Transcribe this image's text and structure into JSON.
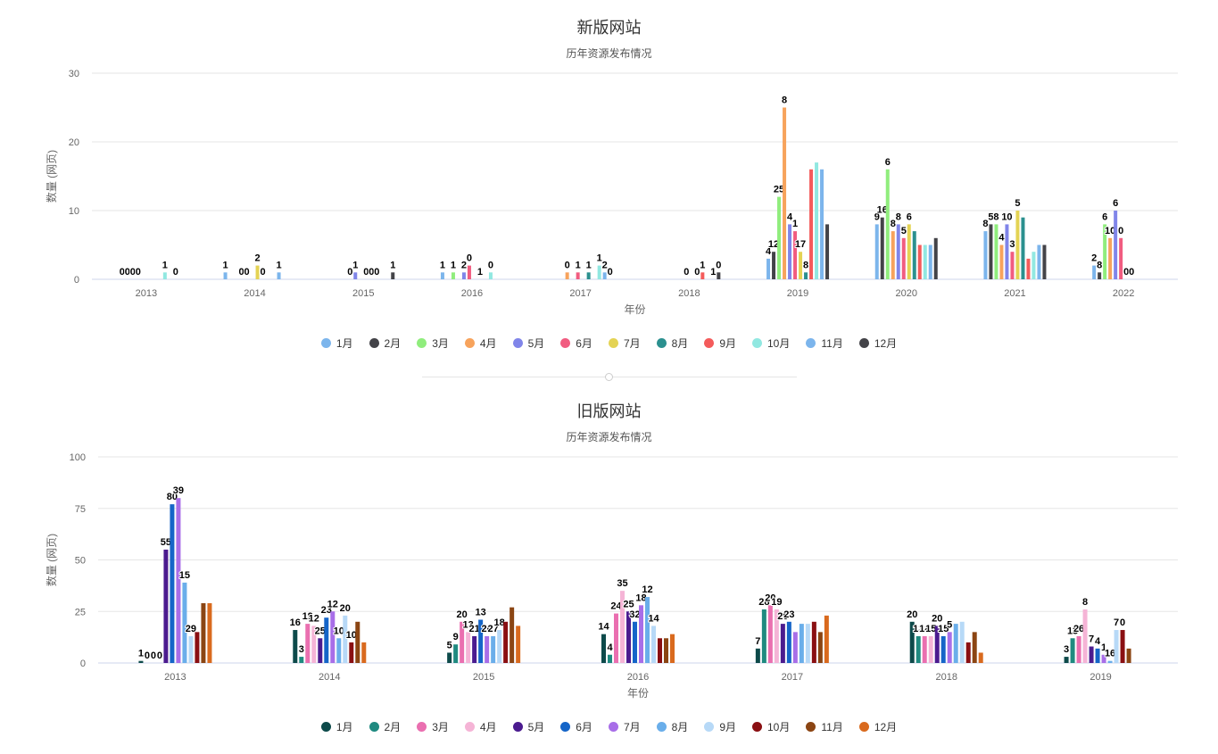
{
  "chart_data": [
    {
      "type": "bar",
      "title": "新版网站",
      "subtitle": "历年资源发布情况",
      "xlabel": "年份",
      "ylabel": "数量 (网页)",
      "ylim": [
        0,
        30
      ],
      "yticks": [
        "0",
        "10",
        "20",
        "30"
      ],
      "categories": [
        "2013",
        "2014",
        "2015",
        "2016",
        "2017",
        "2018",
        "2019",
        "2020",
        "2021",
        "2022"
      ],
      "series": [
        {
          "name": "1月",
          "color": "#7cb5ec",
          "values": [
            null,
            1,
            null,
            1,
            null,
            null,
            3,
            8,
            7,
            2
          ]
        },
        {
          "name": "2月",
          "color": "#434348",
          "values": [
            0,
            null,
            null,
            null,
            null,
            null,
            4,
            9,
            8,
            1
          ]
        },
        {
          "name": "3月",
          "color": "#90ed7d",
          "values": [
            0,
            null,
            null,
            1,
            null,
            null,
            12,
            16,
            8,
            8
          ]
        },
        {
          "name": "4月",
          "color": "#f7a35c",
          "values": [
            0,
            0,
            0,
            null,
            1,
            null,
            25,
            7,
            5,
            6
          ]
        },
        {
          "name": "5月",
          "color": "#8085e9",
          "values": [
            0,
            0,
            1,
            1,
            null,
            null,
            8,
            8,
            8,
            10
          ]
        },
        {
          "name": "6月",
          "color": "#f15c80",
          "values": [
            null,
            null,
            null,
            2,
            1,
            0,
            7,
            6,
            4,
            6
          ]
        },
        {
          "name": "7月",
          "color": "#e4d354",
          "values": [
            null,
            2,
            0,
            null,
            null,
            null,
            4,
            8,
            10,
            0
          ]
        },
        {
          "name": "8月",
          "color": "#2b908f",
          "values": [
            null,
            0,
            0,
            0,
            1,
            0,
            1,
            7,
            9,
            0
          ]
        },
        {
          "name": "9月",
          "color": "#f45b5b",
          "values": [
            null,
            null,
            0,
            null,
            null,
            1,
            16,
            5,
            3,
            0
          ]
        },
        {
          "name": "10月",
          "color": "#91e8e1",
          "values": [
            1,
            null,
            null,
            1,
            2,
            null,
            17,
            5,
            4,
            null
          ]
        },
        {
          "name": "11月",
          "color": "#7cb5ec",
          "values": [
            null,
            1,
            null,
            null,
            1,
            0,
            16,
            5,
            5,
            null
          ]
        },
        {
          "name": "12月",
          "color": "#434348",
          "values": [
            0,
            null,
            1,
            0,
            0,
            1,
            8,
            6,
            5,
            null
          ]
        }
      ],
      "data_labels": [
        [
          "0",
          "0",
          "0",
          "0",
          "1",
          "0"
        ],
        [
          "1",
          "0",
          "0",
          "2",
          "0",
          "1"
        ],
        [
          "0",
          "1",
          "0",
          "0",
          "0",
          "1"
        ],
        [
          "1",
          "1",
          "2",
          "0",
          "1",
          "0"
        ],
        [
          "0",
          "1",
          "1",
          "1",
          "2",
          "0"
        ],
        [
          "0",
          "0",
          "1",
          "1",
          "0",
          "1"
        ],
        [
          "4",
          "12",
          "25",
          "8",
          "4",
          "1",
          "17",
          "8"
        ],
        [
          "9",
          "16",
          "6",
          "8",
          "8",
          "5",
          "6"
        ],
        [
          "8",
          "5",
          "8",
          "4",
          "10",
          "3",
          "5"
        ],
        [
          "2",
          "8",
          "6",
          "10",
          "6",
          "0",
          "0",
          "0"
        ]
      ]
    },
    {
      "type": "bar",
      "title": "旧版网站",
      "subtitle": "历年资源发布情况",
      "xlabel": "年份",
      "ylabel": "数量 (网页)",
      "ylim": [
        0,
        100
      ],
      "yticks": [
        "0",
        "25",
        "50",
        "75",
        "100"
      ],
      "categories": [
        "2013",
        "2014",
        "2015",
        "2016",
        "2017",
        "2018",
        "2019"
      ],
      "series": [
        {
          "name": "1月",
          "color": "#0d4a4a",
          "values": [
            1,
            16,
            5,
            14,
            7,
            20,
            3
          ]
        },
        {
          "name": "2月",
          "color": "#1f8a80",
          "values": [
            0,
            3,
            9,
            4,
            26,
            13,
            12
          ]
        },
        {
          "name": "3月",
          "color": "#ea6fb0",
          "values": [
            0,
            19,
            20,
            24,
            28,
            13,
            13
          ]
        },
        {
          "name": "4月",
          "color": "#f5b4d6",
          "values": [
            0,
            18,
            15,
            35,
            26,
            13,
            26
          ]
        },
        {
          "name": "5月",
          "color": "#4b1b8f",
          "values": [
            55,
            12,
            13,
            25,
            19,
            18,
            8
          ]
        },
        {
          "name": "6月",
          "color": "#1565c8",
          "values": [
            77,
            22,
            21,
            20,
            20,
            13,
            7
          ]
        },
        {
          "name": "7月",
          "color": "#a86ee8",
          "values": [
            80,
            25,
            13,
            28,
            15,
            15,
            4
          ]
        },
        {
          "name": "8月",
          "color": "#6aaeea",
          "values": [
            39,
            12,
            13,
            32,
            19,
            19,
            1
          ]
        },
        {
          "name": "9月",
          "color": "#b7d9f7",
          "values": [
            13,
            23,
            16,
            18,
            19,
            20,
            16
          ]
        },
        {
          "name": "10月",
          "color": "#8a0f12",
          "values": [
            15,
            10,
            20,
            12,
            20,
            10,
            16
          ]
        },
        {
          "name": "11月",
          "color": "#8b4513",
          "values": [
            29,
            20,
            27,
            12,
            15,
            15,
            7
          ]
        },
        {
          "name": "12月",
          "color": "#d96a1e",
          "values": [
            29,
            10,
            18,
            14,
            23,
            5,
            0
          ]
        }
      ],
      "data_labels": [
        [
          "1",
          "0",
          "0",
          "0",
          "55",
          "80",
          "39",
          "15",
          "29"
        ],
        [
          "16",
          "3",
          "19",
          "12",
          "25",
          "23",
          "12",
          "10",
          "20",
          "10"
        ],
        [
          "5",
          "9",
          "20",
          "13",
          "21",
          "13",
          "20",
          "27",
          "18"
        ],
        [
          "14",
          "4",
          "24",
          "35",
          "25",
          "32",
          "18",
          "12",
          "14"
        ],
        [
          "7",
          "28",
          "20",
          "19",
          "20",
          "23"
        ],
        [
          "20",
          "13",
          "18",
          "15",
          "20",
          "15",
          "5"
        ],
        [
          "3",
          "13",
          "26",
          "8",
          "7",
          "4",
          "1",
          "16",
          "7",
          "0"
        ]
      ]
    }
  ]
}
